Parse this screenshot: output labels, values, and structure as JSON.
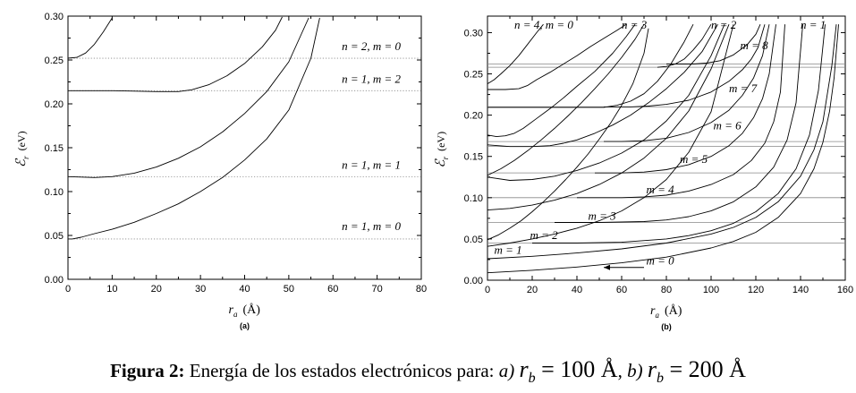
{
  "chart_data": [
    {
      "type": "line",
      "panel_label": "(a)",
      "xlabel_sym": "r",
      "xlabel_sub": "a",
      "xlabel_unit": "(Å)",
      "ylabel_sym": "ℰ",
      "ylabel_sub": "r",
      "ylabel_unit": "(eV)",
      "xlim": [
        0,
        80
      ],
      "ylim": [
        0,
        0.3
      ],
      "x_ticks": [
        "0",
        "10",
        "20",
        "30",
        "40",
        "50",
        "60",
        "70",
        "80"
      ],
      "y_ticks": [
        "0.00",
        "0.05",
        "0.10",
        "0.15",
        "0.20",
        "0.25",
        "0.30"
      ],
      "reference_lines": [
        0.252,
        0.215,
        0.117,
        0.046
      ],
      "annotations": [
        {
          "text": "n = 2,   m = 0",
          "x": 62,
          "y": 0.261
        },
        {
          "text": "n = 1,   m = 2",
          "x": 62,
          "y": 0.224
        },
        {
          "text": "n = 1,   m = 1",
          "x": 62,
          "y": 0.126
        },
        {
          "text": "n = 1,   m = 0",
          "x": 62,
          "y": 0.056
        }
      ],
      "series": [
        {
          "x": [
            0,
            2,
            4,
            6,
            8,
            10
          ],
          "y": [
            0.252,
            0.253,
            0.258,
            0.268,
            0.282,
            0.298
          ]
        },
        {
          "x": [
            0,
            10,
            20,
            25,
            28,
            32,
            36,
            40,
            44,
            47,
            48.5
          ],
          "y": [
            0.215,
            0.215,
            0.214,
            0.214,
            0.216,
            0.222,
            0.232,
            0.246,
            0.265,
            0.284,
            0.299
          ]
        },
        {
          "x": [
            0,
            6,
            10,
            15,
            20,
            25,
            30,
            35,
            40,
            45,
            50,
            54.5
          ],
          "y": [
            0.117,
            0.116,
            0.117,
            0.121,
            0.128,
            0.138,
            0.151,
            0.168,
            0.189,
            0.214,
            0.248,
            0.298
          ]
        },
        {
          "x": [
            0,
            1,
            3,
            6,
            10,
            15,
            20,
            25,
            30,
            35,
            40,
            45,
            50,
            55,
            57
          ],
          "y": [
            0.046,
            0.046,
            0.048,
            0.052,
            0.057,
            0.065,
            0.075,
            0.086,
            0.1,
            0.116,
            0.136,
            0.16,
            0.193,
            0.252,
            0.298
          ]
        }
      ]
    },
    {
      "type": "line",
      "panel_label": "(b)",
      "xlabel_sym": "r",
      "xlabel_sub": "a",
      "xlabel_unit": "(Å)",
      "ylabel_sym": "ℰ",
      "ylabel_sub": "r",
      "ylabel_unit": "(eV)",
      "xlim": [
        0,
        160
      ],
      "ylim": [
        0,
        0.32
      ],
      "x_ticks": [
        "0",
        "20",
        "40",
        "60",
        "80",
        "100",
        "120",
        "140",
        "160"
      ],
      "y_ticks": [
        "0.00",
        "0.05",
        "0.10",
        "0.15",
        "0.20",
        "0.25",
        "0.30"
      ],
      "reference_lines": [
        0.262,
        0.258,
        0.21,
        0.168,
        0.162,
        0.13,
        0.1,
        0.07,
        0.045
      ],
      "annotations": [
        {
          "text": "n = 4, m = 0",
          "x": 12,
          "y": 0.305
        },
        {
          "text": "n = 3",
          "x": 60,
          "y": 0.305
        },
        {
          "text": "n = 2",
          "x": 100,
          "y": 0.305
        },
        {
          "text": "n = 1",
          "x": 140,
          "y": 0.305
        },
        {
          "text": "m = 8",
          "x": 113,
          "y": 0.28
        },
        {
          "text": "m = 7",
          "x": 108,
          "y": 0.228
        },
        {
          "text": "m = 6",
          "x": 101,
          "y": 0.183
        },
        {
          "text": "m = 5",
          "x": 86,
          "y": 0.142
        },
        {
          "text": "m = 4",
          "x": 71,
          "y": 0.105
        },
        {
          "text": "m = 3",
          "x": 45,
          "y": 0.073
        },
        {
          "text": "m = 2",
          "x": 19,
          "y": 0.05
        },
        {
          "text": "m = 1",
          "x": 3,
          "y": 0.032
        },
        {
          "text": "m = 0",
          "x": 71,
          "y": 0.019
        }
      ],
      "series": [
        {
          "x": [
            0,
            3,
            6,
            10,
            14,
            18,
            22,
            25
          ],
          "y": [
            0.238,
            0.243,
            0.25,
            0.26,
            0.272,
            0.286,
            0.3,
            0.31
          ]
        },
        {
          "x": [
            0,
            4,
            8,
            14,
            18,
            22,
            28,
            34,
            40,
            46,
            52,
            58,
            62
          ],
          "y": [
            0.231,
            0.231,
            0.231,
            0.232,
            0.236,
            0.243,
            0.252,
            0.262,
            0.272,
            0.283,
            0.293,
            0.303,
            0.31
          ]
        },
        {
          "x": [
            0,
            4,
            8,
            12,
            16,
            22,
            28,
            34,
            40,
            48,
            56,
            62,
            66
          ],
          "y": [
            0.176,
            0.174,
            0.175,
            0.178,
            0.184,
            0.196,
            0.208,
            0.221,
            0.235,
            0.253,
            0.275,
            0.295,
            0.31
          ]
        },
        {
          "x": [
            0,
            6,
            12,
            18,
            24,
            30,
            36,
            42,
            48,
            54,
            60,
            66,
            70
          ],
          "y": [
            0.127,
            0.135,
            0.145,
            0.157,
            0.17,
            0.184,
            0.199,
            0.215,
            0.232,
            0.25,
            0.27,
            0.292,
            0.31
          ]
        },
        {
          "x": [
            0,
            5,
            10,
            15,
            20,
            25,
            30,
            35,
            40,
            45,
            50,
            55,
            60,
            65,
            70,
            72
          ],
          "y": [
            0.049,
            0.055,
            0.063,
            0.072,
            0.083,
            0.095,
            0.108,
            0.122,
            0.137,
            0.153,
            0.171,
            0.19,
            0.212,
            0.238,
            0.275,
            0.305
          ]
        },
        {
          "x": [
            0,
            20,
            40,
            52,
            58,
            64,
            70,
            76,
            82,
            88,
            92
          ],
          "y": [
            0.2095,
            0.2095,
            0.2095,
            0.2095,
            0.212,
            0.217,
            0.226,
            0.241,
            0.262,
            0.289,
            0.31
          ]
        },
        {
          "x": [
            0,
            10,
            20,
            28,
            34,
            40,
            48,
            56,
            64,
            72,
            80,
            88,
            96,
            103
          ],
          "y": [
            0.164,
            0.162,
            0.162,
            0.163,
            0.166,
            0.17,
            0.178,
            0.188,
            0.2,
            0.215,
            0.232,
            0.252,
            0.277,
            0.31
          ]
        },
        {
          "x": [
            0,
            10,
            20,
            30,
            40,
            50,
            60,
            70,
            80,
            90,
            100,
            106
          ],
          "y": [
            0.125,
            0.121,
            0.122,
            0.126,
            0.133,
            0.142,
            0.154,
            0.17,
            0.193,
            0.224,
            0.272,
            0.31
          ]
        },
        {
          "x": [
            0,
            10,
            20,
            30,
            40,
            50,
            60,
            70,
            80,
            90,
            100,
            108
          ],
          "y": [
            0.085,
            0.087,
            0.091,
            0.097,
            0.105,
            0.116,
            0.13,
            0.148,
            0.172,
            0.205,
            0.256,
            0.31
          ]
        },
        {
          "x": [
            0,
            10,
            20,
            30,
            40,
            50,
            60,
            70,
            80,
            90,
            100,
            110
          ],
          "y": [
            0.041,
            0.045,
            0.05,
            0.056,
            0.063,
            0.072,
            0.084,
            0.1,
            0.122,
            0.155,
            0.204,
            0.31
          ]
        },
        {
          "x": [
            76,
            80,
            84,
            88,
            92,
            96,
            100
          ],
          "y": [
            0.258,
            0.259,
            0.262,
            0.268,
            0.279,
            0.292,
            0.31
          ]
        },
        {
          "x": [
            80,
            86,
            92,
            98,
            104,
            110,
            116,
            120,
            122
          ],
          "y": [
            0.262,
            0.262,
            0.262,
            0.263,
            0.266,
            0.273,
            0.285,
            0.298,
            0.31
          ]
        },
        {
          "x": [
            52,
            58,
            64,
            72,
            80,
            90,
            100,
            108,
            114,
            118,
            121,
            124
          ],
          "y": [
            0.21,
            0.21,
            0.21,
            0.211,
            0.213,
            0.218,
            0.228,
            0.241,
            0.255,
            0.268,
            0.282,
            0.31
          ]
        },
        {
          "x": [
            52,
            60,
            70,
            80,
            90,
            100,
            108,
            114,
            119,
            123,
            126
          ],
          "y": [
            0.168,
            0.168,
            0.169,
            0.172,
            0.179,
            0.191,
            0.206,
            0.224,
            0.245,
            0.272,
            0.31
          ]
        },
        {
          "x": [
            48,
            60,
            70,
            80,
            90,
            100,
            108,
            114,
            119,
            123,
            126,
            129
          ],
          "y": [
            0.13,
            0.13,
            0.131,
            0.134,
            0.14,
            0.15,
            0.163,
            0.178,
            0.197,
            0.22,
            0.25,
            0.31
          ]
        },
        {
          "x": [
            40,
            60,
            70,
            80,
            90,
            100,
            110,
            118,
            124,
            128,
            131,
            133
          ],
          "y": [
            0.1,
            0.1,
            0.101,
            0.103,
            0.108,
            0.116,
            0.128,
            0.145,
            0.166,
            0.192,
            0.228,
            0.31
          ]
        },
        {
          "x": [
            30,
            50,
            70,
            80,
            90,
            100,
            110,
            120,
            128,
            134,
            138,
            141
          ],
          "y": [
            0.07,
            0.07,
            0.071,
            0.073,
            0.077,
            0.084,
            0.095,
            0.113,
            0.137,
            0.17,
            0.215,
            0.31
          ]
        },
        {
          "x": [
            20,
            40,
            60,
            80,
            90,
            100,
            110,
            120,
            130,
            138,
            144,
            148,
            151
          ],
          "y": [
            0.045,
            0.045,
            0.046,
            0.05,
            0.054,
            0.06,
            0.069,
            0.083,
            0.105,
            0.135,
            0.176,
            0.23,
            0.31
          ]
        },
        {
          "x": [
            0,
            20,
            40,
            60,
            80,
            100,
            110,
            120,
            130,
            140,
            146,
            150,
            154,
            156
          ],
          "y": [
            0.026,
            0.029,
            0.033,
            0.038,
            0.045,
            0.056,
            0.064,
            0.076,
            0.095,
            0.126,
            0.158,
            0.192,
            0.26,
            0.31
          ]
        },
        {
          "x": [
            0,
            20,
            40,
            60,
            80,
            100,
            110,
            120,
            130,
            140,
            146,
            150,
            153,
            155,
            157
          ],
          "y": [
            0.009,
            0.012,
            0.016,
            0.021,
            0.028,
            0.039,
            0.047,
            0.058,
            0.076,
            0.105,
            0.135,
            0.167,
            0.205,
            0.245,
            0.31
          ]
        }
      ]
    }
  ],
  "caption": {
    "label": "Figura 2:",
    "text": " Energía de los estados electrónicos para: ",
    "item_a": "a)",
    "expr_a": "r",
    "expr_a_sub": "b",
    "expr_a_val": " = 100 Å",
    "sep": ", ",
    "item_b": "b)",
    "expr_b": "r",
    "expr_b_sub": "b",
    "expr_b_val": " = 200 Å"
  }
}
